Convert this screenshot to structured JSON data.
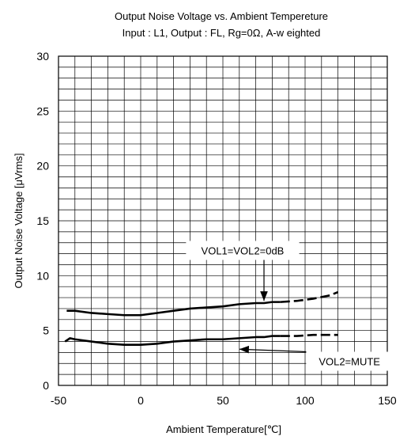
{
  "chart_data": {
    "type": "line",
    "title": "Output Noise Voltage vs. Ambient Tempereture",
    "subtitle": "Input : L1, Output : FL, Rg=0Ω, A-w eighted",
    "xlabel": "Ambient Temperature[℃]",
    "ylabel": "Output Noise Voltage [μVrms]",
    "xlim": [
      -50,
      150
    ],
    "ylim": [
      0,
      30
    ],
    "xticks": [
      -50,
      0,
      50,
      100,
      150
    ],
    "yticks": [
      0,
      5,
      10,
      15,
      20,
      25,
      30
    ],
    "grid": true,
    "series": [
      {
        "name": "VOL1=VOL2=0dB",
        "solid_x": [
          -45,
          -40,
          -30,
          -20,
          -10,
          0,
          10,
          20,
          30,
          40,
          50,
          60,
          70,
          75,
          80,
          85
        ],
        "solid_y": [
          6.8,
          6.8,
          6.6,
          6.5,
          6.4,
          6.4,
          6.6,
          6.8,
          7.0,
          7.1,
          7.2,
          7.4,
          7.5,
          7.5,
          7.6,
          7.6
        ],
        "dashed_x": [
          85,
          95,
          105,
          115,
          120
        ],
        "dashed_y": [
          7.6,
          7.7,
          7.9,
          8.2,
          8.5
        ]
      },
      {
        "name": "VOL2=MUTE",
        "solid_x": [
          -46,
          -43,
          -40,
          -30,
          -20,
          -10,
          0,
          10,
          20,
          30,
          40,
          50,
          60,
          70,
          75,
          80,
          85
        ],
        "solid_y": [
          4.0,
          4.3,
          4.2,
          4.0,
          3.8,
          3.7,
          3.7,
          3.8,
          4.0,
          4.1,
          4.2,
          4.2,
          4.3,
          4.4,
          4.4,
          4.5,
          4.5
        ],
        "dashed_x": [
          85,
          95,
          105,
          115,
          120
        ],
        "dashed_y": [
          4.5,
          4.5,
          4.6,
          4.6,
          4.6
        ]
      }
    ],
    "annotations": [
      {
        "text": "VOL1=VOL2=0dB",
        "x": 62,
        "y": 12.3,
        "arrow_to": [
          75,
          7.7
        ]
      },
      {
        "text": "VOL2=MUTE",
        "x": 127,
        "y": 2.2,
        "arrow_to": [
          60,
          3.3
        ]
      }
    ]
  }
}
